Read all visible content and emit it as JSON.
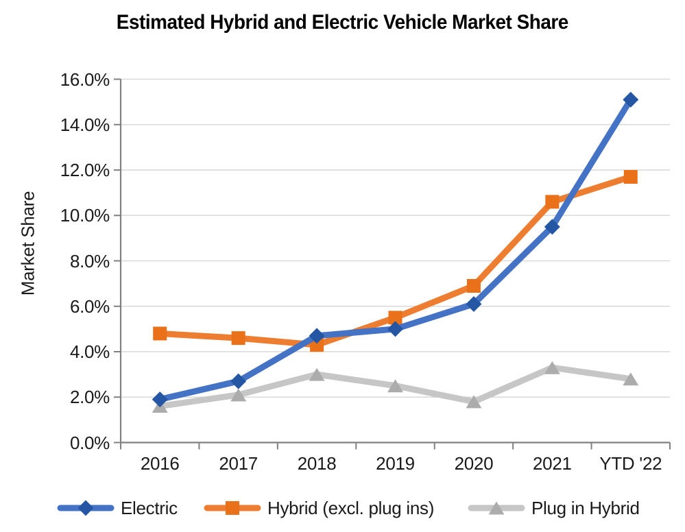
{
  "page": {
    "background": "#ffffff"
  },
  "chart_data": {
    "type": "line",
    "title": "Estimated Hybrid and Electric Vehicle Market Share",
    "ylabel": "Market Share",
    "xlabel": "",
    "categories": [
      "2016",
      "2017",
      "2018",
      "2019",
      "2020",
      "2021",
      "YTD '22"
    ],
    "series": [
      {
        "name": "Electric",
        "marker": "diamond",
        "line_color": "#4472C4",
        "marker_color": "#2456A4",
        "values": [
          1.9,
          2.7,
          4.7,
          5.0,
          6.1,
          9.5,
          15.1
        ]
      },
      {
        "name": "Hybrid (excl. plug ins)",
        "marker": "square",
        "line_color": "#ED7D31",
        "marker_color": "#E8711A",
        "values": [
          4.8,
          4.6,
          4.3,
          5.5,
          6.9,
          10.6,
          11.7
        ]
      },
      {
        "name": "Plug in Hybrid",
        "marker": "triangle",
        "line_color": "#C6C6C6",
        "marker_color": "#ACACAC",
        "values": [
          1.6,
          2.1,
          3.0,
          2.5,
          1.8,
          3.3,
          2.8
        ]
      }
    ],
    "ylim": [
      0,
      16
    ],
    "ytick_step": 2,
    "ytick_decimals": 1,
    "ytick_suffix": "%",
    "grid": true,
    "legend_position": "bottom",
    "colors": {
      "axis": "#808080",
      "grid": "#D9D9D9",
      "text": "#1A1A1A",
      "title": "#000000"
    }
  }
}
